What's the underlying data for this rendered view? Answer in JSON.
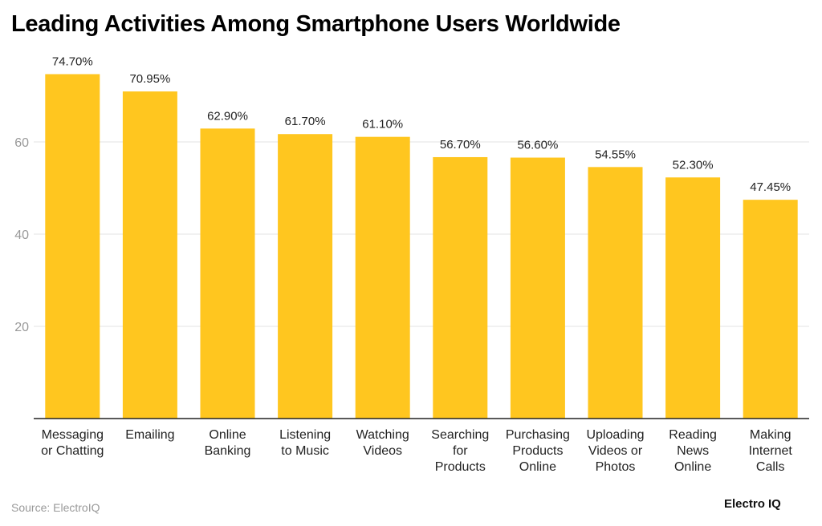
{
  "title": "Leading Activities Among Smartphone Users Worldwide",
  "source": "Source: ElectroIQ",
  "logo": "Electro IQ",
  "colors": {
    "bar": "#FFC61F",
    "grid": "#e3e3e3",
    "axis": "#222222",
    "tick_label": "#999999"
  },
  "chart_data": {
    "type": "bar",
    "title": "Leading Activities Among Smartphone Users Worldwide",
    "categories": [
      [
        "Messaging",
        "or Chatting"
      ],
      [
        "Emailing"
      ],
      [
        "Online",
        "Banking"
      ],
      [
        "Listening",
        "to Music"
      ],
      [
        "Watching",
        "Videos"
      ],
      [
        "Searching",
        "for",
        "Products"
      ],
      [
        "Purchasing",
        "Products",
        "Online"
      ],
      [
        "Uploading",
        "Videos or",
        "Photos"
      ],
      [
        "Reading",
        "News",
        "Online"
      ],
      [
        "Making",
        "Internet",
        "Calls"
      ]
    ],
    "values": [
      74.7,
      70.95,
      62.9,
      61.7,
      61.1,
      56.7,
      56.6,
      54.55,
      52.3,
      47.45
    ],
    "data_labels": [
      "74.70%",
      "70.95%",
      "62.90%",
      "61.70%",
      "61.10%",
      "56.70%",
      "56.60%",
      "54.55%",
      "52.30%",
      "47.45%"
    ],
    "yticks": [
      20,
      40,
      60
    ],
    "ylim": [
      0,
      80
    ],
    "grid": true,
    "xlabel": "",
    "ylabel": ""
  }
}
